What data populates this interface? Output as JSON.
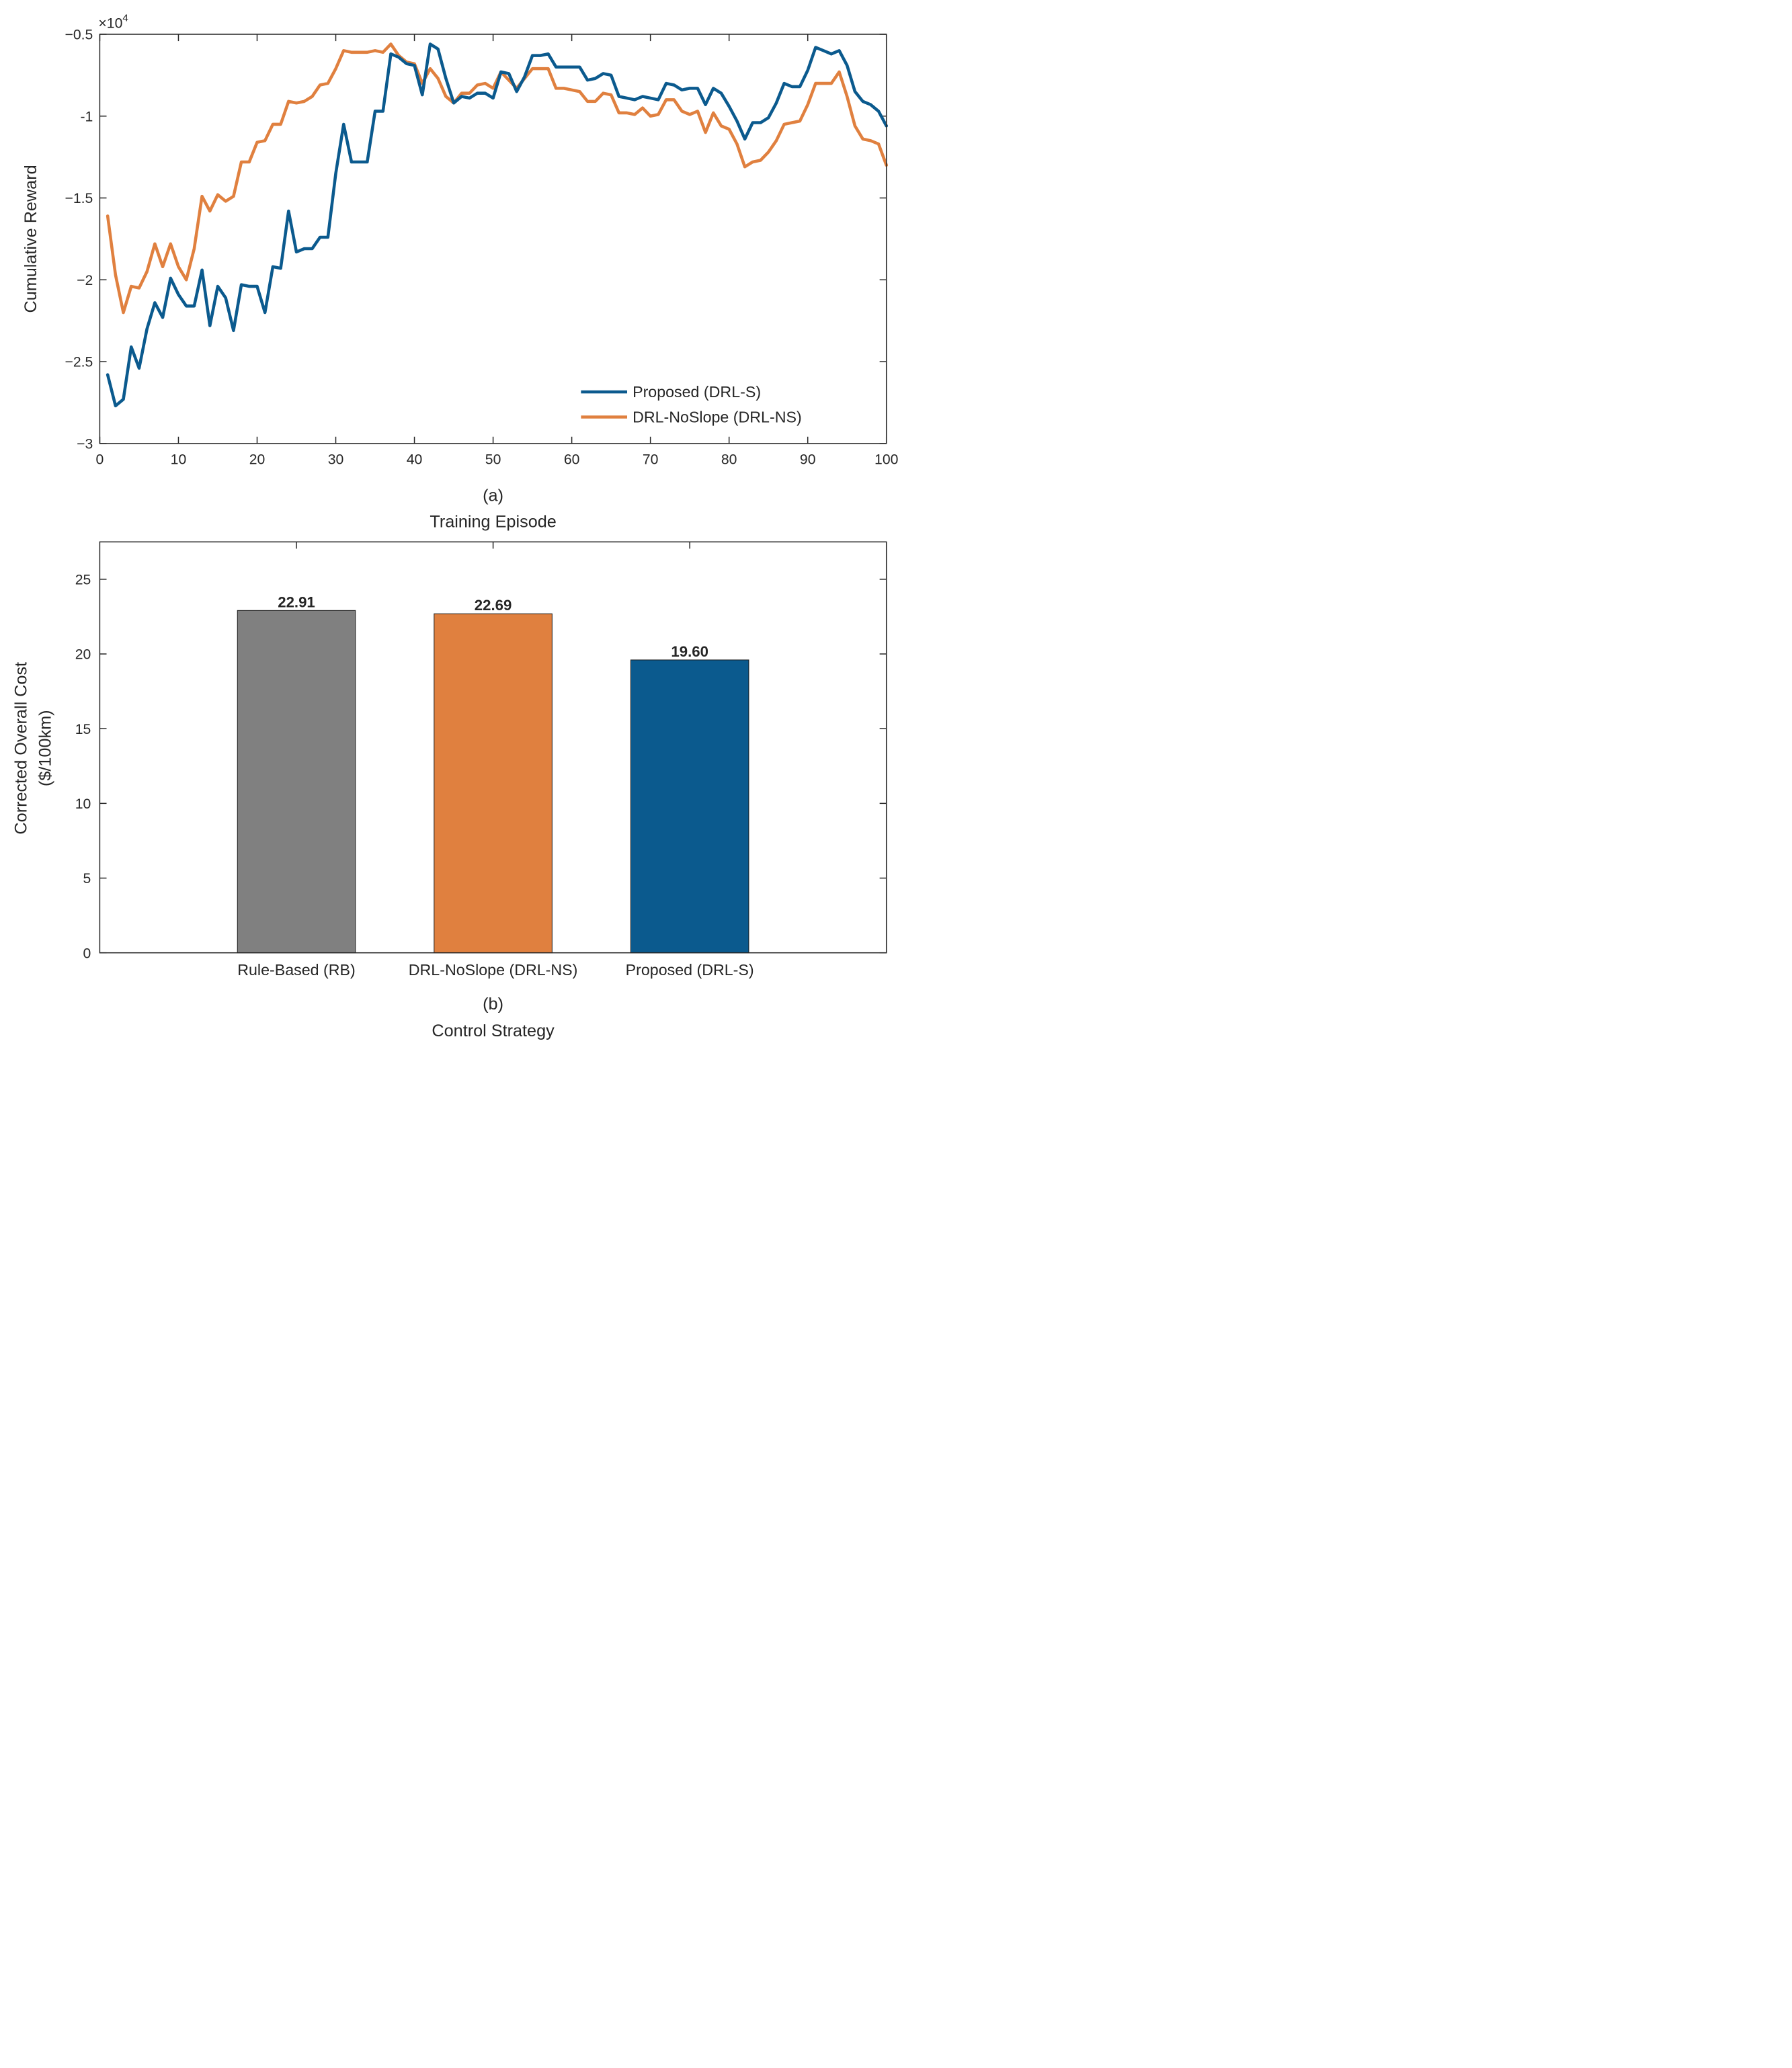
{
  "chart_data": [
    {
      "type": "line",
      "panel_label": "(a)",
      "xlabel": "Training Episode",
      "ylabel": "Cumulative Reward",
      "y_exponent_label": "×10",
      "y_exponent_power": "4",
      "xlim": [
        0,
        100
      ],
      "ylim": [
        -3,
        -0.5
      ],
      "xticks": [
        0,
        10,
        20,
        30,
        40,
        50,
        60,
        70,
        80,
        90,
        100
      ],
      "xtick_labels": [
        "0",
        "10",
        "20",
        "30",
        "40",
        "50",
        "60",
        "70",
        "80",
        "90",
        "100"
      ],
      "yticks": [
        -3,
        -2.5,
        -2,
        -1.5,
        -1,
        -0.5
      ],
      "ytick_labels": [
        "−3",
        "−2.5",
        "−2",
        "−1.5",
        "-1",
        "−0.5"
      ],
      "grid": false,
      "legend_position": "bottom-right",
      "x": [
        1,
        2,
        3,
        4,
        5,
        6,
        7,
        8,
        9,
        10,
        11,
        12,
        13,
        14,
        15,
        16,
        17,
        18,
        19,
        20,
        21,
        22,
        23,
        24,
        25,
        26,
        27,
        28,
        29,
        30,
        31,
        32,
        33,
        34,
        35,
        36,
        37,
        38,
        39,
        40,
        41,
        42,
        43,
        44,
        45,
        46,
        47,
        48,
        49,
        50,
        51,
        52,
        53,
        54,
        55,
        56,
        57,
        58,
        59,
        60,
        61,
        62,
        63,
        64,
        65,
        66,
        67,
        68,
        69,
        70,
        71,
        72,
        73,
        74,
        75,
        76,
        77,
        78,
        79,
        80,
        81,
        82,
        83,
        84,
        85,
        86,
        87,
        88,
        89,
        90,
        91,
        92,
        93,
        94,
        95,
        96,
        97,
        98,
        99,
        100
      ],
      "series": [
        {
          "name": "Proposed (DRL-S)",
          "color": "#0b5a8e",
          "values": [
            -2.58,
            -2.77,
            -2.73,
            -2.41,
            -2.54,
            -2.3,
            -2.14,
            -2.23,
            -1.99,
            -2.09,
            -2.16,
            -2.16,
            -1.94,
            -2.28,
            -2.04,
            -2.11,
            -2.31,
            -2.03,
            -2.04,
            -2.04,
            -2.2,
            -1.92,
            -1.93,
            -1.58,
            -1.83,
            -1.81,
            -1.81,
            -1.74,
            -1.74,
            -1.35,
            -1.05,
            -1.28,
            -1.28,
            -1.28,
            -0.97,
            -0.97,
            -0.62,
            -0.64,
            -0.68,
            -0.69,
            -0.87,
            -0.56,
            -0.59,
            -0.77,
            -0.92,
            -0.88,
            -0.89,
            -0.86,
            -0.86,
            -0.89,
            -0.73,
            -0.74,
            -0.85,
            -0.76,
            -0.63,
            -0.63,
            -0.62,
            -0.7,
            -0.7,
            -0.7,
            -0.7,
            -0.78,
            -0.77,
            -0.74,
            -0.75,
            -0.88,
            -0.89,
            -0.9,
            -0.88,
            -0.89,
            -0.9,
            -0.8,
            -0.81,
            -0.84,
            -0.83,
            -0.83,
            -0.93,
            -0.83,
            -0.86,
            -0.94,
            -1.03,
            -1.14,
            -1.04,
            -1.04,
            -1.01,
            -0.92,
            -0.8,
            -0.82,
            -0.82,
            -0.72,
            -0.58,
            -0.6,
            -0.62,
            -0.6,
            -0.69,
            -0.85,
            -0.91,
            -0.93,
            -0.97,
            -1.06
          ]
        },
        {
          "name": "DRL-NoSlope (DRL-NS)",
          "color": "#e0803f",
          "values": [
            -1.61,
            -1.97,
            -2.2,
            -2.04,
            -2.05,
            -1.95,
            -1.78,
            -1.92,
            -1.78,
            -1.92,
            -2.0,
            -1.81,
            -1.49,
            -1.58,
            -1.48,
            -1.52,
            -1.49,
            -1.28,
            -1.28,
            -1.16,
            -1.15,
            -1.05,
            -1.05,
            -0.91,
            -0.92,
            -0.91,
            -0.88,
            -0.81,
            -0.8,
            -0.71,
            -0.6,
            -0.61,
            -0.61,
            -0.61,
            -0.6,
            -0.61,
            -0.56,
            -0.63,
            -0.67,
            -0.68,
            -0.8,
            -0.71,
            -0.77,
            -0.88,
            -0.92,
            -0.86,
            -0.86,
            -0.81,
            -0.8,
            -0.83,
            -0.73,
            -0.78,
            -0.83,
            -0.77,
            -0.71,
            -0.71,
            -0.71,
            -0.83,
            -0.83,
            -0.84,
            -0.85,
            -0.91,
            -0.91,
            -0.86,
            -0.87,
            -0.98,
            -0.98,
            -0.99,
            -0.95,
            -1.0,
            -0.99,
            -0.9,
            -0.9,
            -0.97,
            -0.99,
            -0.97,
            -1.1,
            -0.98,
            -1.06,
            -1.08,
            -1.17,
            -1.31,
            -1.28,
            -1.27,
            -1.22,
            -1.15,
            -1.05,
            -1.04,
            -1.03,
            -0.93,
            -0.8,
            -0.8,
            -0.8,
            -0.73,
            -0.88,
            -1.06,
            -1.14,
            -1.15,
            -1.17,
            -1.3
          ]
        }
      ]
    },
    {
      "type": "bar",
      "panel_label": "(b)",
      "xlabel": "Control Strategy",
      "ylabel_line1": "Corrected Overall Cost",
      "ylabel_line2": "($/100km)",
      "categories": [
        "Rule-Based (RB)",
        "DRL-NoSlope (DRL-NS)",
        "Proposed (DRL-S)"
      ],
      "values": [
        22.91,
        22.69,
        19.6
      ],
      "value_labels": [
        "22.91",
        "22.69",
        "19.60"
      ],
      "colors": [
        "#808080",
        "#e0803f",
        "#0b5a8e"
      ],
      "ylim": [
        0,
        27.5
      ],
      "yticks": [
        0,
        5,
        10,
        15,
        20,
        25
      ],
      "ytick_labels": [
        "0",
        "5",
        "10",
        "15",
        "20",
        "25"
      ],
      "grid": false
    }
  ]
}
